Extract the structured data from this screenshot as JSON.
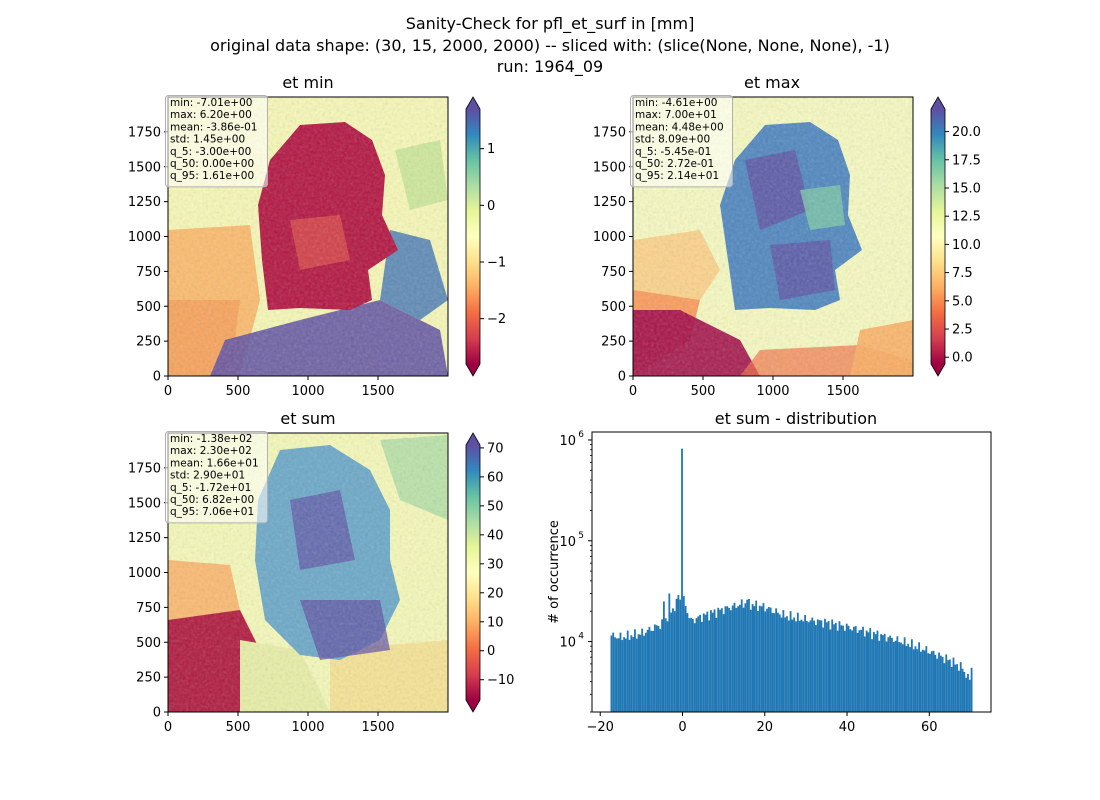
{
  "figure": {
    "title_lines": [
      "Sanity-Check for pfl_et_surf in [mm]",
      "original data shape: (30, 15, 2000, 2000) -- sliced with: (slice(None, None, None), -1)",
      "run: 1964_09"
    ]
  },
  "chart_data": [
    {
      "type": "heatmap",
      "title": "et min",
      "xlim": [
        0,
        2000
      ],
      "ylim": [
        0,
        2000
      ],
      "x_ticks": [
        "0",
        "500",
        "1000",
        "1500"
      ],
      "y_ticks": [
        "0",
        "250",
        "500",
        "750",
        "1000",
        "1250",
        "1500",
        "1750"
      ],
      "colormap": "Spectral",
      "colorbar": {
        "min": -2.8,
        "max": 1.7,
        "extend": "both",
        "ticks": [
          -2,
          -1,
          0,
          1
        ],
        "tick_labels": [
          "−2",
          "−1",
          "0",
          "1"
        ]
      },
      "stats": [
        "min: -7.01e+00",
        "max: 6.20e+00",
        "mean: -3.86e-01",
        "std: 1.45e+00",
        "q_5: -3.00e+00",
        "q_50: 0.00e+00",
        "q_95: 1.61e+00"
      ]
    },
    {
      "type": "heatmap",
      "title": "et max",
      "xlim": [
        0,
        2000
      ],
      "ylim": [
        0,
        2000
      ],
      "x_ticks": [
        "0",
        "500",
        "1000",
        "1500"
      ],
      "y_ticks": [
        "0",
        "250",
        "500",
        "750",
        "1000",
        "1250",
        "1500",
        "1750"
      ],
      "colormap": "Spectral",
      "colorbar": {
        "min": -0.6,
        "max": 22,
        "extend": "both",
        "ticks": [
          0,
          2.5,
          5,
          7.5,
          10,
          12.5,
          15,
          17.5,
          20
        ],
        "tick_labels": [
          "0.0",
          "2.5",
          "5.0",
          "7.5",
          "10.0",
          "12.5",
          "15.0",
          "17.5",
          "20.0"
        ]
      },
      "stats": [
        "min: -4.61e+00",
        "max: 7.00e+01",
        "mean: 4.48e+00",
        "std: 8.09e+00",
        "q_5: -5.45e-01",
        "q_50: 2.72e-01",
        "q_95: 2.14e+01"
      ]
    },
    {
      "type": "heatmap",
      "title": "et sum",
      "xlim": [
        0,
        2000
      ],
      "ylim": [
        0,
        2000
      ],
      "x_ticks": [
        "0",
        "500",
        "1000",
        "1500"
      ],
      "y_ticks": [
        "0",
        "250",
        "500",
        "750",
        "1000",
        "1250",
        "1500",
        "1750"
      ],
      "colormap": "Spectral",
      "colorbar": {
        "min": -17,
        "max": 71,
        "extend": "both",
        "ticks": [
          -10,
          0,
          10,
          20,
          30,
          40,
          50,
          60,
          70
        ],
        "tick_labels": [
          "−10",
          "0",
          "10",
          "20",
          "30",
          "40",
          "50",
          "60",
          "70"
        ]
      },
      "stats": [
        "min: -1.38e+02",
        "max: 2.30e+02",
        "mean: 1.66e+01",
        "std: 2.90e+01",
        "q_5: -1.72e+01",
        "q_50: 6.82e+00",
        "q_95: 7.06e+01"
      ]
    },
    {
      "type": "bar",
      "title": "et sum - distribution",
      "ylabel": "# of occurrence",
      "yscale": "log",
      "xlim": [
        -22,
        75
      ],
      "ylim": [
        2000,
        1200000
      ],
      "x_ticks": [
        -20,
        0,
        20,
        40,
        60
      ],
      "x_tick_labels": [
        "−20",
        "0",
        "20",
        "40",
        "60"
      ],
      "y_ticks": [
        10000,
        100000,
        1000000
      ],
      "y_tick_labels": [
        {
          "base": "10",
          "exp": "4"
        },
        {
          "base": "10",
          "exp": "5"
        },
        {
          "base": "10",
          "exp": "6"
        }
      ],
      "bar_color": "#1f77b4",
      "bin_range": [
        -17.5,
        70.5
      ],
      "bin_count": 200,
      "envelope_x": [
        -17.5,
        -15,
        -10,
        -5,
        -2,
        -1,
        0,
        2,
        5,
        10,
        15,
        20,
        25,
        30,
        35,
        40,
        45,
        50,
        55,
        60,
        65,
        68,
        70
      ],
      "envelope_y": [
        11500,
        11000,
        12000,
        15000,
        22000,
        25000,
        28000,
        16000,
        18000,
        21000,
        24000,
        22000,
        18000,
        16500,
        15500,
        14000,
        12500,
        11000,
        9500,
        8000,
        6500,
        5500,
        4000
      ],
      "spikes": [
        {
          "x": 0,
          "y": 820000
        },
        {
          "x": -4.5,
          "y": 25000
        },
        {
          "x": -3.4,
          "y": 30000
        },
        {
          "x": -1.2,
          "y": 29000
        },
        {
          "x": 15.8,
          "y": 26000
        },
        {
          "x": 70.2,
          "y": 5500
        }
      ]
    }
  ]
}
